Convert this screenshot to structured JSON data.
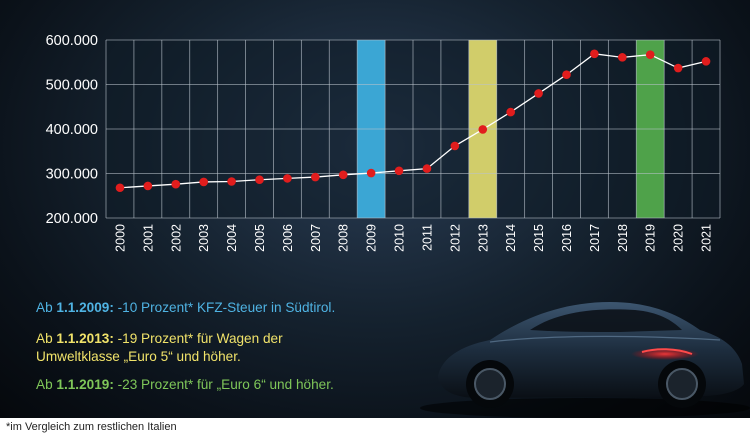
{
  "chart_data": {
    "type": "line",
    "x": [
      "2000",
      "2001",
      "2002",
      "2003",
      "2004",
      "2005",
      "2006",
      "2007",
      "2008",
      "2009",
      "2010",
      "2011",
      "2012",
      "2013",
      "2014",
      "2015",
      "2016",
      "2017",
      "2018",
      "2019",
      "2020",
      "2021"
    ],
    "values": [
      268000,
      272000,
      276000,
      281000,
      282000,
      286000,
      289000,
      292000,
      297000,
      301000,
      306000,
      311000,
      362000,
      399000,
      438000,
      480000,
      522000,
      569000,
      561000,
      567000,
      537000,
      552000
    ],
    "ylim": [
      200000,
      600000
    ],
    "yticks": [
      "200.000",
      "300.000",
      "400.000",
      "500.000",
      "600.000"
    ],
    "ytick_values": [
      200000,
      300000,
      400000,
      500000,
      600000
    ],
    "highlights": [
      {
        "year": "2009",
        "color": "#3ba6d4"
      },
      {
        "year": "2013",
        "color": "#d1cd6a"
      },
      {
        "year": "2019",
        "color": "#4fa24a"
      }
    ],
    "grid": true,
    "line_color": "#ffffff",
    "marker_color": "#e11d1d"
  },
  "notes": [
    {
      "prefix": "Ab ",
      "date": "1.1.2009:",
      "text": " -10 Prozent* KFZ-Steuer in Südtirol.",
      "color": "#4fb3e3"
    },
    {
      "prefix": "Ab ",
      "date": "1.1.2013:",
      "text": " -19 Prozent* für Wagen der",
      "line2": "Umweltklasse „Euro 5“ und höher.",
      "color": "#f1e36a"
    },
    {
      "prefix": "Ab ",
      "date": "1.1.2019:",
      "text": " -23 Prozent* für „Euro 6“ und höher.",
      "color": "#7fc759"
    }
  ],
  "footnote": "*im Vergleich zum restlichen Italien",
  "image": {
    "icon": "sports-car-image"
  }
}
